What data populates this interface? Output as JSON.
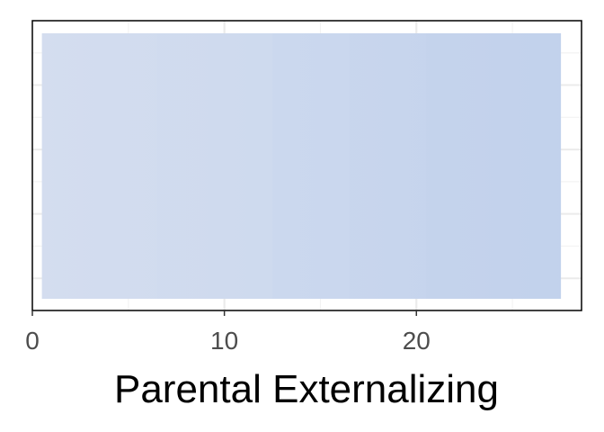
{
  "chart_data": {
    "type": "heatmap",
    "title": "",
    "xlabel": "Parental Externalizing",
    "ylabel": "",
    "xlim": [
      0,
      28.6
    ],
    "x_ticks": [
      0,
      10,
      20
    ],
    "x_tick_labels": [
      "0",
      "10",
      "20"
    ],
    "grid": true,
    "legend": "none",
    "tiles": [
      {
        "x_start": 0.5,
        "x_end": 6.5,
        "color": "#d3ddef"
      },
      {
        "x_start": 6.5,
        "x_end": 12.5,
        "color": "#d1dcef"
      },
      {
        "x_start": 12.5,
        "x_end": 16.5,
        "color": "#cbd8ee"
      },
      {
        "x_start": 16.5,
        "x_end": 20.5,
        "color": "#c7d5ed"
      },
      {
        "x_start": 20.5,
        "x_end": 27.5,
        "color": "#c3d2ec"
      }
    ],
    "tile_range": [
      0.5,
      27.5
    ]
  },
  "colors": {
    "panel_border": "#000000",
    "grid_major": "#ebebeb",
    "grid_minor": "#f3f3f3",
    "tile_start": "#d4ddef",
    "tile_end": "#c1d1ec"
  }
}
